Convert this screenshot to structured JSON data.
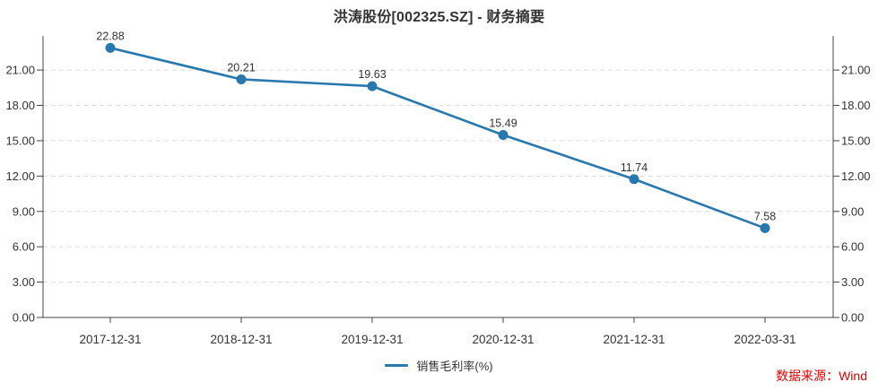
{
  "chart_data": {
    "type": "line",
    "title": "洪涛股份[002325.SZ] - 财务摘要",
    "x": [
      "2017-12-31",
      "2018-12-31",
      "2019-12-31",
      "2020-12-31",
      "2021-12-31",
      "2022-03-31"
    ],
    "series": [
      {
        "name": "销售毛利率(%)",
        "values": [
          22.88,
          20.21,
          19.63,
          15.49,
          11.74,
          7.58
        ],
        "color": "#2878b0"
      }
    ],
    "ylim": [
      0,
      23.9
    ],
    "yticks": [
      0,
      3,
      6,
      9,
      12,
      15,
      18,
      21
    ],
    "ytick_decimals": 2,
    "grid": "horizontal-dashed",
    "dual_y_axis": true,
    "point_labels_visible": true,
    "legend_position": "bottom-center"
  },
  "footer": {
    "source_text": "数据来源：Wind",
    "source_color": "#e60000"
  },
  "colors": {
    "axis": "#444444",
    "gridline": "#dcdcdc",
    "text": "#333333",
    "background": "#ffffff"
  }
}
